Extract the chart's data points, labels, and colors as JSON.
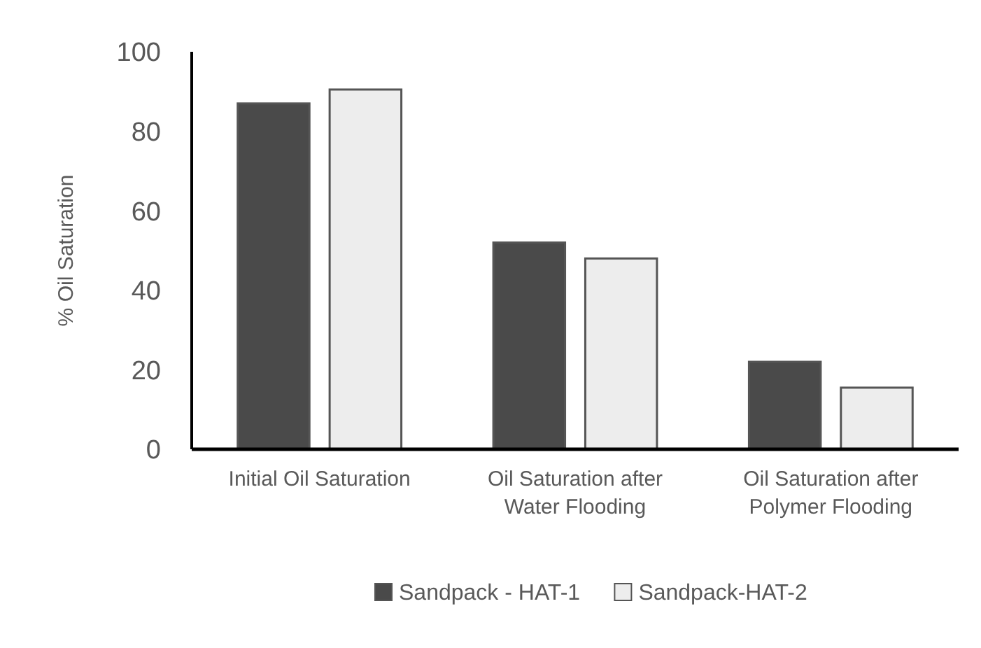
{
  "chart_data": {
    "type": "bar",
    "ylabel": "% Oil Saturation",
    "categories": [
      "Initial Oil Saturation",
      "Oil Saturation after Water Flooding",
      "Oil Saturation after Polymer Flooding"
    ],
    "series": [
      {
        "name": "Sandpack - HAT-1",
        "color": "#4a4a4a",
        "values": [
          87,
          52,
          22
        ]
      },
      {
        "name": "Sandpack-HAT-2",
        "color": "#ededed",
        "values": [
          90.5,
          48,
          15.5
        ]
      }
    ],
    "ylim": [
      0,
      100
    ],
    "yticks": [
      0,
      20,
      40,
      60,
      80,
      100
    ],
    "grid": false,
    "legend": "bottom"
  }
}
